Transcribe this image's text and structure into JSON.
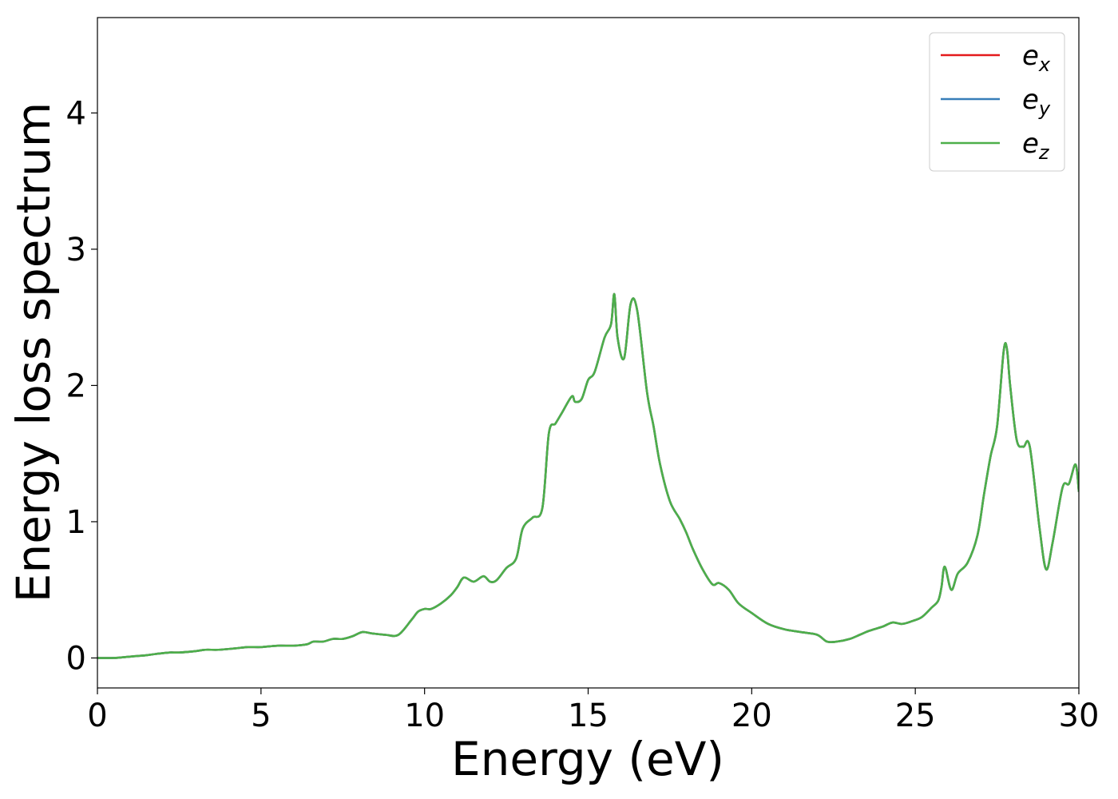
{
  "chart_data": {
    "type": "line",
    "title": "",
    "xlabel": "Energy (eV)",
    "ylabel": "Energy loss spectrum",
    "xlim": [
      0,
      30
    ],
    "ylim": [
      -0.22,
      4.7
    ],
    "xticks": [
      "0",
      "5",
      "10",
      "15",
      "20",
      "25",
      "30"
    ],
    "yticks": [
      "0",
      "1",
      "2",
      "3",
      "4"
    ],
    "grid": false,
    "legend_position": "top-right",
    "x": [
      0,
      0.5,
      1.0,
      1.5,
      1.8,
      2.2,
      2.5,
      3.0,
      3.3,
      3.7,
      4.2,
      4.6,
      5.0,
      5.5,
      6.0,
      6.4,
      6.6,
      6.9,
      7.2,
      7.5,
      7.8,
      8.1,
      8.4,
      8.8,
      9.2,
      9.6,
      9.8,
      10.0,
      10.2,
      10.5,
      10.8,
      11.0,
      11.2,
      11.5,
      11.8,
      12.0,
      12.2,
      12.5,
      12.8,
      13.0,
      13.3,
      13.6,
      13.8,
      14.0,
      14.2,
      14.5,
      14.6,
      14.8,
      15.0,
      15.2,
      15.5,
      15.7,
      15.8,
      15.9,
      16.1,
      16.3,
      16.5,
      16.8,
      17.0,
      17.2,
      17.5,
      17.8,
      18.0,
      18.2,
      18.5,
      18.8,
      19.0,
      19.3,
      19.6,
      20.0,
      20.5,
      21.0,
      21.5,
      22.0,
      22.3,
      22.6,
      23.0,
      23.3,
      23.6,
      24.0,
      24.3,
      24.6,
      24.9,
      25.2,
      25.5,
      25.7,
      25.8,
      25.9,
      26.1,
      26.3,
      26.6,
      26.9,
      27.1,
      27.3,
      27.5,
      27.7,
      27.8,
      27.9,
      28.1,
      28.3,
      28.5,
      28.8,
      29.0,
      29.2,
      29.5,
      29.7,
      29.9,
      30.0
    ],
    "series": [
      {
        "name": "e_x",
        "color": "#e41a1c",
        "values": [
          0.0,
          0.0,
          0.01,
          0.02,
          0.03,
          0.04,
          0.04,
          0.05,
          0.06,
          0.06,
          0.07,
          0.08,
          0.08,
          0.09,
          0.09,
          0.1,
          0.12,
          0.12,
          0.14,
          0.14,
          0.16,
          0.19,
          0.18,
          0.17,
          0.17,
          0.28,
          0.34,
          0.36,
          0.36,
          0.4,
          0.46,
          0.52,
          0.59,
          0.56,
          0.6,
          0.56,
          0.57,
          0.66,
          0.73,
          0.95,
          1.03,
          1.1,
          1.65,
          1.72,
          1.8,
          1.92,
          1.88,
          1.9,
          2.04,
          2.1,
          2.35,
          2.45,
          2.67,
          2.35,
          2.2,
          2.6,
          2.55,
          1.95,
          1.7,
          1.42,
          1.15,
          1.02,
          0.92,
          0.8,
          0.65,
          0.54,
          0.55,
          0.5,
          0.4,
          0.33,
          0.25,
          0.21,
          0.19,
          0.17,
          0.12,
          0.12,
          0.14,
          0.17,
          0.2,
          0.23,
          0.26,
          0.25,
          0.27,
          0.3,
          0.37,
          0.42,
          0.52,
          0.67,
          0.5,
          0.62,
          0.7,
          0.9,
          1.2,
          1.48,
          1.7,
          2.25,
          2.27,
          2.0,
          1.6,
          1.55,
          1.55,
          0.95,
          0.65,
          0.85,
          1.25,
          1.28,
          1.42,
          1.22
        ]
      },
      {
        "name": "e_y",
        "color": "#377eb8",
        "values": [
          0.0,
          0.0,
          0.01,
          0.02,
          0.03,
          0.04,
          0.04,
          0.05,
          0.06,
          0.06,
          0.07,
          0.08,
          0.08,
          0.09,
          0.09,
          0.1,
          0.12,
          0.12,
          0.14,
          0.14,
          0.16,
          0.19,
          0.18,
          0.17,
          0.17,
          0.28,
          0.34,
          0.36,
          0.36,
          0.4,
          0.46,
          0.52,
          0.59,
          0.56,
          0.6,
          0.56,
          0.57,
          0.66,
          0.73,
          0.95,
          1.03,
          1.1,
          1.65,
          1.72,
          1.8,
          1.92,
          1.88,
          1.9,
          2.04,
          2.1,
          2.35,
          2.45,
          2.67,
          2.35,
          2.2,
          2.6,
          2.55,
          1.95,
          1.7,
          1.42,
          1.15,
          1.02,
          0.92,
          0.8,
          0.65,
          0.54,
          0.55,
          0.5,
          0.4,
          0.33,
          0.25,
          0.21,
          0.19,
          0.17,
          0.12,
          0.12,
          0.14,
          0.17,
          0.2,
          0.23,
          0.26,
          0.25,
          0.27,
          0.3,
          0.37,
          0.42,
          0.52,
          0.67,
          0.5,
          0.62,
          0.7,
          0.9,
          1.2,
          1.48,
          1.7,
          2.25,
          2.27,
          2.0,
          1.6,
          1.55,
          1.55,
          0.95,
          0.65,
          0.85,
          1.25,
          1.28,
          1.42,
          1.22
        ]
      },
      {
        "name": "e_z",
        "color": "#4daf4a",
        "values": [
          0.0,
          0.0,
          0.01,
          0.02,
          0.03,
          0.04,
          0.04,
          0.05,
          0.06,
          0.06,
          0.07,
          0.08,
          0.08,
          0.09,
          0.09,
          0.1,
          0.12,
          0.12,
          0.14,
          0.14,
          0.16,
          0.19,
          0.18,
          0.17,
          0.17,
          0.28,
          0.34,
          0.36,
          0.36,
          0.4,
          0.46,
          0.52,
          0.59,
          0.56,
          0.6,
          0.56,
          0.57,
          0.66,
          0.73,
          0.95,
          1.03,
          1.1,
          1.65,
          1.72,
          1.8,
          1.92,
          1.88,
          1.9,
          2.04,
          2.1,
          2.35,
          2.45,
          2.67,
          2.35,
          2.2,
          2.6,
          2.55,
          1.95,
          1.7,
          1.42,
          1.15,
          1.02,
          0.92,
          0.8,
          0.65,
          0.54,
          0.55,
          0.5,
          0.4,
          0.33,
          0.25,
          0.21,
          0.19,
          0.17,
          0.12,
          0.12,
          0.14,
          0.17,
          0.2,
          0.23,
          0.26,
          0.25,
          0.27,
          0.3,
          0.37,
          0.42,
          0.52,
          0.67,
          0.5,
          0.62,
          0.7,
          0.9,
          1.2,
          1.48,
          1.7,
          2.25,
          2.27,
          2.0,
          1.6,
          1.55,
          1.55,
          0.95,
          0.65,
          0.85,
          1.25,
          1.28,
          1.42,
          1.22
        ]
      }
    ],
    "legend": [
      {
        "base": "e",
        "sub": "x",
        "color": "#e41a1c"
      },
      {
        "base": "e",
        "sub": "y",
        "color": "#377eb8"
      },
      {
        "base": "e",
        "sub": "z",
        "color": "#4daf4a"
      }
    ]
  }
}
